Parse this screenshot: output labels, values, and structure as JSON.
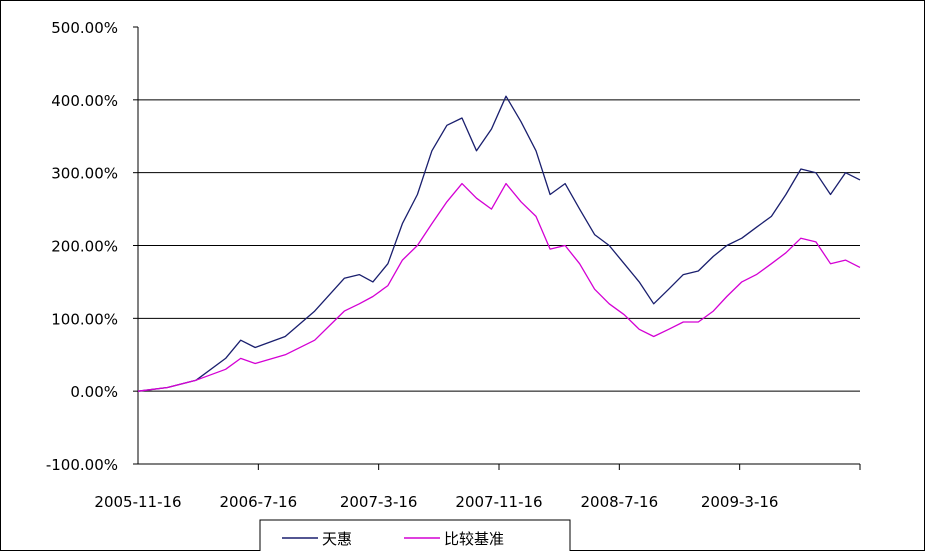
{
  "chart_data": {
    "type": "line",
    "title": "",
    "xlabel": "",
    "ylabel": "",
    "ylim": [
      -100,
      500
    ],
    "grid": true,
    "legend_position": "bottom",
    "x_tick_labels": [
      "2005-11-16",
      "2006-7-16",
      "2007-3-16",
      "2007-11-16",
      "2008-7-16",
      "2009-3-16"
    ],
    "y_tick_labels": [
      "-100.00%",
      "0.00%",
      "100.00%",
      "200.00%",
      "300.00%",
      "400.00%",
      "500.00%"
    ],
    "y_ticks": [
      -100,
      0,
      100,
      200,
      300,
      400,
      500
    ],
    "x": [
      "2005-11-16",
      "2006-01-16",
      "2006-03-16",
      "2006-05-16",
      "2006-06-16",
      "2006-07-16",
      "2006-09-16",
      "2006-11-16",
      "2007-01-16",
      "2007-02-16",
      "2007-03-16",
      "2007-04-16",
      "2007-05-16",
      "2007-06-16",
      "2007-07-16",
      "2007-08-16",
      "2007-09-16",
      "2007-10-16",
      "2007-11-16",
      "2007-12-16",
      "2008-01-16",
      "2008-02-16",
      "2008-03-16",
      "2008-04-16",
      "2008-05-16",
      "2008-06-16",
      "2008-07-16",
      "2008-08-16",
      "2008-09-16",
      "2008-10-16",
      "2008-11-16",
      "2008-12-16",
      "2009-01-16",
      "2009-02-16",
      "2009-03-16",
      "2009-04-16",
      "2009-05-16",
      "2009-06-16",
      "2009-07-16",
      "2009-08-16",
      "2009-09-16",
      "2009-10-16",
      "2009-11-16",
      "2009-12-16"
    ],
    "series": [
      {
        "name": "天惠",
        "color": "#1a1f6e",
        "values": [
          0,
          5,
          15,
          45,
          70,
          60,
          75,
          110,
          155,
          160,
          150,
          175,
          230,
          270,
          330,
          365,
          375,
          330,
          360,
          405,
          370,
          330,
          270,
          285,
          250,
          215,
          200,
          175,
          150,
          120,
          140,
          160,
          165,
          185,
          200,
          210,
          225,
          240,
          270,
          305,
          300,
          270,
          300,
          290
        ]
      },
      {
        "name": "比较基准",
        "color": "#d400d4",
        "values": [
          0,
          5,
          15,
          30,
          45,
          38,
          50,
          70,
          110,
          120,
          130,
          145,
          180,
          200,
          230,
          260,
          285,
          265,
          250,
          285,
          260,
          240,
          195,
          200,
          175,
          140,
          120,
          105,
          85,
          75,
          85,
          95,
          95,
          110,
          130,
          150,
          160,
          175,
          190,
          210,
          205,
          175,
          180,
          170
        ]
      }
    ]
  }
}
